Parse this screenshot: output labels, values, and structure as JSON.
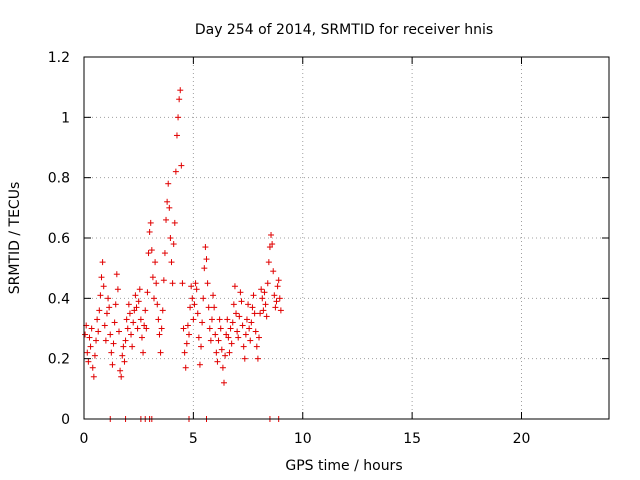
{
  "chart_data": {
    "type": "scatter",
    "title": "Day 254 of 2014, SRMTID for receiver hnis",
    "xlabel": "GPS time / hours",
    "ylabel": "SRMTID / TECUs",
    "xlim": [
      0,
      24
    ],
    "ylim": [
      0,
      1.2
    ],
    "grid": true,
    "marker": "+",
    "color": "#e00000",
    "x_ticks": [
      0,
      5,
      10,
      15,
      20
    ],
    "x_tick_labels": [
      "0",
      "5",
      "10",
      "15",
      "20"
    ],
    "y_ticks": [
      0,
      0.2,
      0.4,
      0.6,
      0.8,
      1.0,
      1.2
    ],
    "y_tick_labels": [
      "0",
      "0.2",
      "0.4",
      "0.6",
      "0.8",
      "1",
      "1.2"
    ],
    "series": [
      {
        "name": "SRMTID",
        "points": [
          [
            0.05,
            0.28
          ],
          [
            0.1,
            0.31
          ],
          [
            0.15,
            0.22
          ],
          [
            0.2,
            0.19
          ],
          [
            0.25,
            0.27
          ],
          [
            0.3,
            0.24
          ],
          [
            0.35,
            0.3
          ],
          [
            0.4,
            0.17
          ],
          [
            0.45,
            0.14
          ],
          [
            0.5,
            0.21
          ],
          [
            0.55,
            0.26
          ],
          [
            0.6,
            0.33
          ],
          [
            0.65,
            0.29
          ],
          [
            0.7,
            0.36
          ],
          [
            0.75,
            0.41
          ],
          [
            0.8,
            0.47
          ],
          [
            0.85,
            0.52
          ],
          [
            0.9,
            0.44
          ],
          [
            0.95,
            0.31
          ],
          [
            1.0,
            0.26
          ],
          [
            1.05,
            0.35
          ],
          [
            1.1,
            0.4
          ],
          [
            1.15,
            0.37
          ],
          [
            1.2,
            0.28
          ],
          [
            1.25,
            0.22
          ],
          [
            1.3,
            0.18
          ],
          [
            1.35,
            0.25
          ],
          [
            1.4,
            0.32
          ],
          [
            1.45,
            0.38
          ],
          [
            1.5,
            0.48
          ],
          [
            1.55,
            0.43
          ],
          [
            1.6,
            0.29
          ],
          [
            1.65,
            0.16
          ],
          [
            1.7,
            0.14
          ],
          [
            1.75,
            0.21
          ],
          [
            1.8,
            0.24
          ],
          [
            1.85,
            0.19
          ],
          [
            1.9,
            0.26
          ],
          [
            1.95,
            0.33
          ],
          [
            2.0,
            0.3
          ],
          [
            2.05,
            0.38
          ],
          [
            2.1,
            0.35
          ],
          [
            2.15,
            0.28
          ],
          [
            2.2,
            0.24
          ],
          [
            2.25,
            0.32
          ],
          [
            2.3,
            0.36
          ],
          [
            2.35,
            0.41
          ],
          [
            2.4,
            0.37
          ],
          [
            2.45,
            0.3
          ],
          [
            2.5,
            0.39
          ],
          [
            2.55,
            0.43
          ],
          [
            2.6,
            0.33
          ],
          [
            2.65,
            0.27
          ],
          [
            2.7,
            0.22
          ],
          [
            2.75,
            0.31
          ],
          [
            2.8,
            0.36
          ],
          [
            2.85,
            0.3
          ],
          [
            2.9,
            0.42
          ],
          [
            2.95,
            0.55
          ],
          [
            3.0,
            0.62
          ],
          [
            3.05,
            0.65
          ],
          [
            3.1,
            0.56
          ],
          [
            3.15,
            0.47
          ],
          [
            3.2,
            0.4
          ],
          [
            3.25,
            0.52
          ],
          [
            3.3,
            0.45
          ],
          [
            3.35,
            0.38
          ],
          [
            3.4,
            0.33
          ],
          [
            3.45,
            0.28
          ],
          [
            3.5,
            0.22
          ],
          [
            3.55,
            0.3
          ],
          [
            3.6,
            0.36
          ],
          [
            3.65,
            0.46
          ],
          [
            3.7,
            0.55
          ],
          [
            3.75,
            0.66
          ],
          [
            3.8,
            0.72
          ],
          [
            3.85,
            0.78
          ],
          [
            3.9,
            0.7
          ],
          [
            3.95,
            0.6
          ],
          [
            4.0,
            0.52
          ],
          [
            4.05,
            0.45
          ],
          [
            4.1,
            0.58
          ],
          [
            4.15,
            0.65
          ],
          [
            4.2,
            0.82
          ],
          [
            4.25,
            0.94
          ],
          [
            4.3,
            1.0
          ],
          [
            4.35,
            1.06
          ],
          [
            4.4,
            1.09
          ],
          [
            4.45,
            0.84
          ],
          [
            4.5,
            0.45
          ],
          [
            4.55,
            0.3
          ],
          [
            4.6,
            0.22
          ],
          [
            4.65,
            0.17
          ],
          [
            4.7,
            0.25
          ],
          [
            4.75,
            0.31
          ],
          [
            4.8,
            0.28
          ],
          [
            4.85,
            0.37
          ],
          [
            4.9,
            0.44
          ],
          [
            4.95,
            0.4
          ],
          [
            5.0,
            0.33
          ],
          [
            5.05,
            0.38
          ],
          [
            5.1,
            0.45
          ],
          [
            5.15,
            0.43
          ],
          [
            5.2,
            0.35
          ],
          [
            5.25,
            0.27
          ],
          [
            5.3,
            0.18
          ],
          [
            5.35,
            0.24
          ],
          [
            5.4,
            0.32
          ],
          [
            5.45,
            0.4
          ],
          [
            5.5,
            0.5
          ],
          [
            5.55,
            0.57
          ],
          [
            5.6,
            0.53
          ],
          [
            5.65,
            0.45
          ],
          [
            5.7,
            0.37
          ],
          [
            5.75,
            0.3
          ],
          [
            5.8,
            0.26
          ],
          [
            5.85,
            0.33
          ],
          [
            5.9,
            0.41
          ],
          [
            5.95,
            0.37
          ],
          [
            6.0,
            0.28
          ],
          [
            6.05,
            0.22
          ],
          [
            6.1,
            0.19
          ],
          [
            6.15,
            0.26
          ],
          [
            6.2,
            0.33
          ],
          [
            6.25,
            0.3
          ],
          [
            6.3,
            0.23
          ],
          [
            6.35,
            0.17
          ],
          [
            6.4,
            0.12
          ],
          [
            6.45,
            0.21
          ],
          [
            6.5,
            0.28
          ],
          [
            6.55,
            0.33
          ],
          [
            6.6,
            0.27
          ],
          [
            6.65,
            0.22
          ],
          [
            6.7,
            0.3
          ],
          [
            6.75,
            0.25
          ],
          [
            6.8,
            0.32
          ],
          [
            6.85,
            0.38
          ],
          [
            6.9,
            0.44
          ],
          [
            6.95,
            0.35
          ],
          [
            7.0,
            0.29
          ],
          [
            7.05,
            0.27
          ],
          [
            7.1,
            0.34
          ],
          [
            7.15,
            0.42
          ],
          [
            7.2,
            0.39
          ],
          [
            7.25,
            0.31
          ],
          [
            7.3,
            0.24
          ],
          [
            7.35,
            0.2
          ],
          [
            7.4,
            0.28
          ],
          [
            7.45,
            0.33
          ],
          [
            7.5,
            0.38
          ],
          [
            7.55,
            0.3
          ],
          [
            7.6,
            0.26
          ],
          [
            7.65,
            0.32
          ],
          [
            7.7,
            0.37
          ],
          [
            7.75,
            0.41
          ],
          [
            7.8,
            0.35
          ],
          [
            7.85,
            0.29
          ],
          [
            7.9,
            0.24
          ],
          [
            7.95,
            0.2
          ],
          [
            8.0,
            0.27
          ],
          [
            8.05,
            0.35
          ],
          [
            8.1,
            0.43
          ],
          [
            8.15,
            0.4
          ],
          [
            8.2,
            0.36
          ],
          [
            8.25,
            0.42
          ],
          [
            8.3,
            0.38
          ],
          [
            8.35,
            0.34
          ],
          [
            8.4,
            0.45
          ],
          [
            8.45,
            0.52
          ],
          [
            8.5,
            0.57
          ],
          [
            8.55,
            0.61
          ],
          [
            8.6,
            0.58
          ],
          [
            8.65,
            0.49
          ],
          [
            8.7,
            0.41
          ],
          [
            8.75,
            0.37
          ],
          [
            8.8,
            0.39
          ],
          [
            8.85,
            0.44
          ],
          [
            8.9,
            0.46
          ],
          [
            8.95,
            0.4
          ],
          [
            9.0,
            0.36
          ]
        ]
      }
    ],
    "zero_value_hours": [
      1.2,
      1.9,
      2.6,
      2.8,
      3.0,
      3.1,
      4.8,
      5.6,
      8.5,
      8.9
    ]
  }
}
